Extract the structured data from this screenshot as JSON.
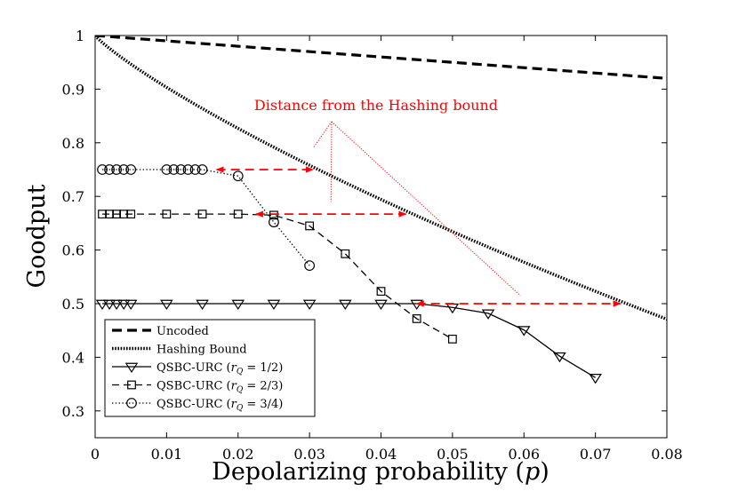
{
  "chart_data": {
    "type": "line",
    "title": "",
    "xlabel": "Depolarizing probability (p)",
    "ylabel": "Goodput",
    "xlim": [
      0,
      0.08
    ],
    "ylim": [
      0.25,
      1.0
    ],
    "xticks": [
      0,
      0.01,
      0.02,
      0.03,
      0.04,
      0.05,
      0.06,
      0.07,
      0.08
    ],
    "xtick_labels": [
      "0",
      "0.01",
      "0.02",
      "0.03",
      "0.04",
      "0.05",
      "0.06",
      "0.07",
      "0.08"
    ],
    "yticks": [
      0.3,
      0.4,
      0.5,
      0.6,
      0.7,
      0.8,
      0.9,
      1.0
    ],
    "ytick_labels": [
      "0.3",
      "0.4",
      "0.5",
      "0.6",
      "0.7",
      "0.8",
      "0.9",
      "1"
    ],
    "grid": false,
    "legend_position": "bottom-left",
    "annotation": {
      "text": "Distance from the Hashing bound",
      "color": "#ff0000"
    },
    "distance_arrows": [
      {
        "x1": 0.017,
        "x2": 0.0305,
        "y": 0.75
      },
      {
        "x1": 0.0225,
        "x2": 0.0435,
        "y": 0.667
      },
      {
        "x1": 0.045,
        "x2": 0.0735,
        "y": 0.5
      }
    ],
    "series": [
      {
        "name": "Uncoded",
        "style": "dashed-thick",
        "marker": "none",
        "x": [
          0,
          0.08
        ],
        "y": [
          1.0,
          0.92
        ]
      },
      {
        "name": "Hashing Bound",
        "style": "dotted-thick",
        "marker": "none",
        "formula": "1 - H(p) - p*log2(3)"
      },
      {
        "name": "QSBC-URC (r_Q = 1/2)",
        "legend_prefix": "QSBC-URC (",
        "legend_math": "r",
        "legend_sub": "Q",
        "legend_suffix": " = 1/2)",
        "style": "solid",
        "marker": "triangle-down",
        "x": [
          0.001,
          0.002,
          0.003,
          0.004,
          0.005,
          0.01,
          0.015,
          0.02,
          0.025,
          0.03,
          0.035,
          0.04,
          0.045,
          0.05,
          0.055,
          0.06,
          0.065,
          0.07
        ],
        "y": [
          0.5,
          0.5,
          0.5,
          0.5,
          0.5,
          0.5,
          0.5,
          0.5,
          0.5,
          0.5,
          0.5,
          0.5,
          0.5,
          0.493,
          0.482,
          0.451,
          0.402,
          0.362
        ]
      },
      {
        "name": "QSBC-URC (r_Q = 2/3)",
        "legend_prefix": "QSBC-URC (",
        "legend_math": "r",
        "legend_sub": "Q",
        "legend_suffix": " = 2/3)",
        "style": "dashed",
        "marker": "square",
        "x": [
          0.001,
          0.002,
          0.003,
          0.004,
          0.005,
          0.01,
          0.015,
          0.02,
          0.025,
          0.03,
          0.035,
          0.04,
          0.045,
          0.05
        ],
        "y": [
          0.667,
          0.667,
          0.667,
          0.667,
          0.667,
          0.667,
          0.667,
          0.667,
          0.665,
          0.645,
          0.593,
          0.523,
          0.472,
          0.434
        ]
      },
      {
        "name": "QSBC-URC (r_Q = 3/4)",
        "legend_prefix": "QSBC-URC (",
        "legend_math": "r",
        "legend_sub": "Q",
        "legend_suffix": " = 3/4)",
        "style": "dotted",
        "marker": "circle",
        "x": [
          0.001,
          0.002,
          0.003,
          0.004,
          0.005,
          0.01,
          0.011,
          0.012,
          0.013,
          0.014,
          0.015,
          0.02,
          0.025,
          0.03
        ],
        "y": [
          0.75,
          0.75,
          0.75,
          0.75,
          0.75,
          0.75,
          0.75,
          0.75,
          0.75,
          0.75,
          0.75,
          0.738,
          0.652,
          0.571
        ]
      }
    ]
  }
}
